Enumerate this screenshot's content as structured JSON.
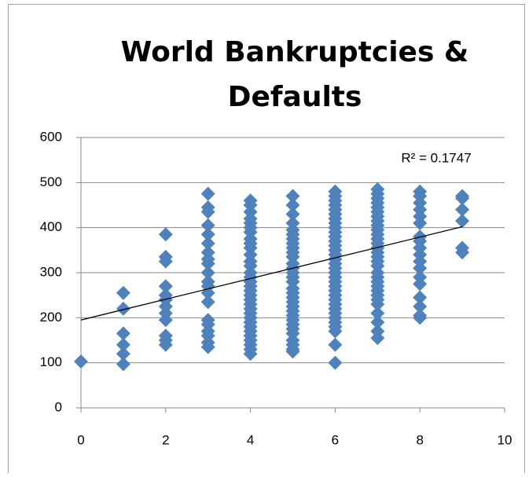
{
  "chart_data": {
    "type": "scatter",
    "title": "World Bankruptcies & Defaults",
    "color": "#4f81bd",
    "x": [
      0,
      1,
      1,
      1,
      1,
      1,
      1,
      2,
      2,
      2,
      2,
      2,
      2,
      2,
      2,
      2,
      2,
      2,
      2,
      3,
      3,
      3,
      3,
      3,
      3,
      3,
      3,
      3,
      3,
      3,
      3,
      3,
      3,
      3,
      3,
      3,
      3,
      3,
      3,
      4,
      4,
      4,
      4,
      4,
      4,
      4,
      4,
      4,
      4,
      4,
      4,
      4,
      4,
      4,
      4,
      4,
      4,
      4,
      4,
      4,
      4,
      4,
      4,
      4,
      4,
      4,
      4,
      4,
      4,
      4,
      4,
      5,
      5,
      5,
      5,
      5,
      5,
      5,
      5,
      5,
      5,
      5,
      5,
      5,
      5,
      5,
      5,
      5,
      5,
      5,
      5,
      5,
      5,
      5,
      5,
      5,
      5,
      5,
      5,
      5,
      5,
      5,
      6,
      6,
      6,
      6,
      6,
      6,
      6,
      6,
      6,
      6,
      6,
      6,
      6,
      6,
      6,
      6,
      6,
      6,
      6,
      6,
      6,
      6,
      6,
      6,
      6,
      6,
      6,
      6,
      6,
      6,
      6,
      6,
      6,
      6,
      7,
      7,
      7,
      7,
      7,
      7,
      7,
      7,
      7,
      7,
      7,
      7,
      7,
      7,
      7,
      7,
      7,
      7,
      7,
      7,
      7,
      7,
      7,
      7,
      7,
      7,
      7,
      7,
      7,
      7,
      8,
      8,
      8,
      8,
      8,
      8,
      8,
      8,
      8,
      8,
      8,
      8,
      8,
      8,
      8,
      8,
      8,
      8,
      9,
      9,
      9,
      9,
      9,
      9
    ],
    "values": [
      103,
      255,
      220,
      165,
      140,
      120,
      97,
      385,
      335,
      325,
      270,
      250,
      240,
      225,
      210,
      195,
      160,
      150,
      140,
      475,
      445,
      435,
      405,
      385,
      365,
      345,
      330,
      320,
      300,
      280,
      270,
      255,
      235,
      195,
      185,
      170,
      160,
      145,
      135,
      460,
      450,
      435,
      420,
      410,
      400,
      390,
      375,
      365,
      355,
      340,
      325,
      315,
      300,
      290,
      280,
      270,
      260,
      250,
      240,
      230,
      220,
      210,
      200,
      190,
      180,
      170,
      160,
      150,
      140,
      130,
      120,
      470,
      450,
      430,
      410,
      395,
      385,
      375,
      365,
      355,
      345,
      335,
      320,
      310,
      300,
      290,
      280,
      265,
      255,
      245,
      235,
      225,
      215,
      205,
      195,
      185,
      175,
      165,
      150,
      140,
      130,
      125,
      480,
      470,
      460,
      450,
      440,
      430,
      420,
      410,
      400,
      390,
      380,
      370,
      360,
      350,
      340,
      330,
      320,
      310,
      300,
      290,
      280,
      270,
      260,
      250,
      240,
      230,
      220,
      210,
      200,
      190,
      180,
      170,
      140,
      100,
      485,
      475,
      465,
      455,
      445,
      435,
      425,
      415,
      405,
      395,
      385,
      375,
      365,
      355,
      345,
      335,
      325,
      315,
      300,
      290,
      280,
      270,
      260,
      250,
      240,
      230,
      210,
      190,
      170,
      155,
      480,
      470,
      455,
      440,
      425,
      410,
      380,
      370,
      355,
      340,
      325,
      310,
      290,
      275,
      245,
      225,
      205,
      200,
      470,
      465,
      440,
      415,
      355,
      345
    ],
    "trendline": {
      "x": [
        0,
        9
      ],
      "y": [
        195,
        402
      ],
      "color": "#000000"
    },
    "annotation": "R² = 0.1747",
    "xlim": [
      0,
      10
    ],
    "xticks": [
      0,
      2,
      4,
      6,
      8,
      10
    ],
    "ylim": [
      0,
      600
    ],
    "yticks": [
      0,
      100,
      200,
      300,
      400,
      500,
      600
    ],
    "grid": true
  }
}
